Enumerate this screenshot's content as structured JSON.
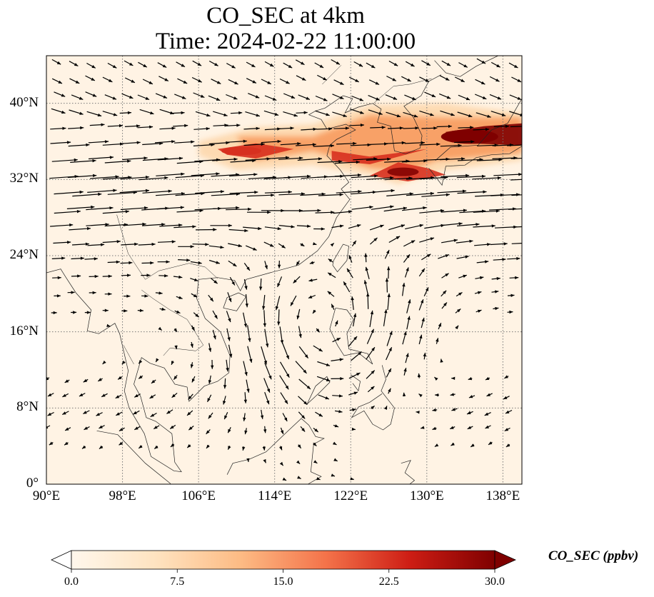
{
  "title": {
    "line1": "CO_SEC at 4km",
    "line2": "Time: 2024-02-22 11:00:00"
  },
  "map": {
    "extent_lon": [
      90,
      140
    ],
    "extent_lat": [
      0,
      45
    ],
    "lat_ticks": [
      "0°",
      "8°N",
      "16°N",
      "24°N",
      "32°N",
      "40°N"
    ],
    "lon_ticks": [
      "90°E",
      "98°E",
      "106°E",
      "114°E",
      "122°E",
      "130°E",
      "138°E"
    ],
    "gridlines": "dotted",
    "field_name": "CO_SEC",
    "plume_colors": [
      "#fdf0e0",
      "#fdd4a6",
      "#f89b5e",
      "#d7301f",
      "#7f0000"
    ]
  },
  "colorbar": {
    "label": "CO_SEC (ppbv)",
    "ticks": [
      "0.0",
      "7.5",
      "15.0",
      "22.5",
      "30.0"
    ],
    "range": [
      0,
      30
    ],
    "colormap": "OrRd",
    "extend": "both"
  }
}
